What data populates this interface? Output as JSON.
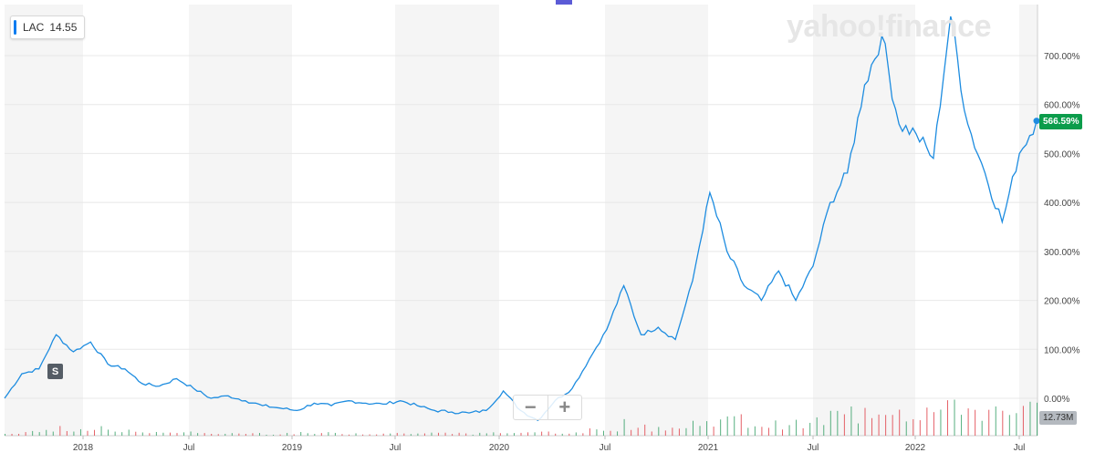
{
  "ticker": {
    "symbol": "LAC",
    "price": "14.55"
  },
  "watermark": "yahoo!finance",
  "markers": {
    "split_label": "S"
  },
  "zoom": {
    "minus": "−",
    "plus": "+"
  },
  "last_value_label": "566.59%",
  "volume_label": "12.73M",
  "colors": {
    "line": "#1d8ce0",
    "vol_up": "#38a169",
    "vol_down": "#e0454e",
    "band": "#f5f5f5",
    "last": "#0b9c4b"
  },
  "chart_data": {
    "type": "line",
    "title": "",
    "ylabel": "",
    "xlabel": "",
    "x_ticks": [
      "2018",
      "Jul",
      "2019",
      "Jul",
      "2020",
      "Jul",
      "2021",
      "Jul",
      "2022",
      "Jul"
    ],
    "y_ticks": [
      "0.00%",
      "100.00%",
      "200.00%",
      "300.00%",
      "400.00%",
      "500.00%",
      "600.00%",
      "700.00%"
    ],
    "ylim": [
      -45,
      790
    ],
    "grid": true,
    "series": [
      {
        "x": [
          "2017-08",
          "2017-09",
          "2017-10",
          "2017-11",
          "2017-12",
          "2018-01",
          "2018-02",
          "2018-03",
          "2018-04",
          "2018-05",
          "2018-06",
          "2018-07",
          "2018-08",
          "2018-09",
          "2018-10",
          "2018-11",
          "2018-12",
          "2019-01",
          "2019-02",
          "2019-03",
          "2019-04",
          "2019-05",
          "2019-06",
          "2019-07",
          "2019-08",
          "2019-09",
          "2019-10",
          "2019-11",
          "2019-12",
          "2020-01",
          "2020-02",
          "2020-03",
          "2020-04",
          "2020-05",
          "2020-06",
          "2020-07",
          "2020-08",
          "2020-09",
          "2020-10",
          "2020-11",
          "2020-12",
          "2021-01",
          "2021-02",
          "2021-03",
          "2021-04",
          "2021-05",
          "2021-06",
          "2021-07",
          "2021-08",
          "2021-09",
          "2021-10",
          "2021-11",
          "2021-12",
          "2022-01",
          "2022-02",
          "2022-03",
          "2022-04",
          "2022-05",
          "2022-06",
          "2022-07",
          "2022-08"
        ],
        "values": [
          0,
          50,
          60,
          130,
          95,
          115,
          70,
          60,
          30,
          25,
          40,
          20,
          0,
          5,
          -5,
          -15,
          -20,
          -25,
          -10,
          -15,
          -5,
          -10,
          -12,
          -5,
          -15,
          -25,
          -28,
          -30,
          -25,
          15,
          -25,
          -45,
          -5,
          20,
          80,
          140,
          230,
          130,
          145,
          120,
          240,
          420,
          300,
          230,
          200,
          260,
          200,
          270,
          400,
          460,
          640,
          740,
          560,
          540,
          490,
          780,
          560,
          460,
          360,
          500,
          566.59
        ]
      }
    ]
  }
}
